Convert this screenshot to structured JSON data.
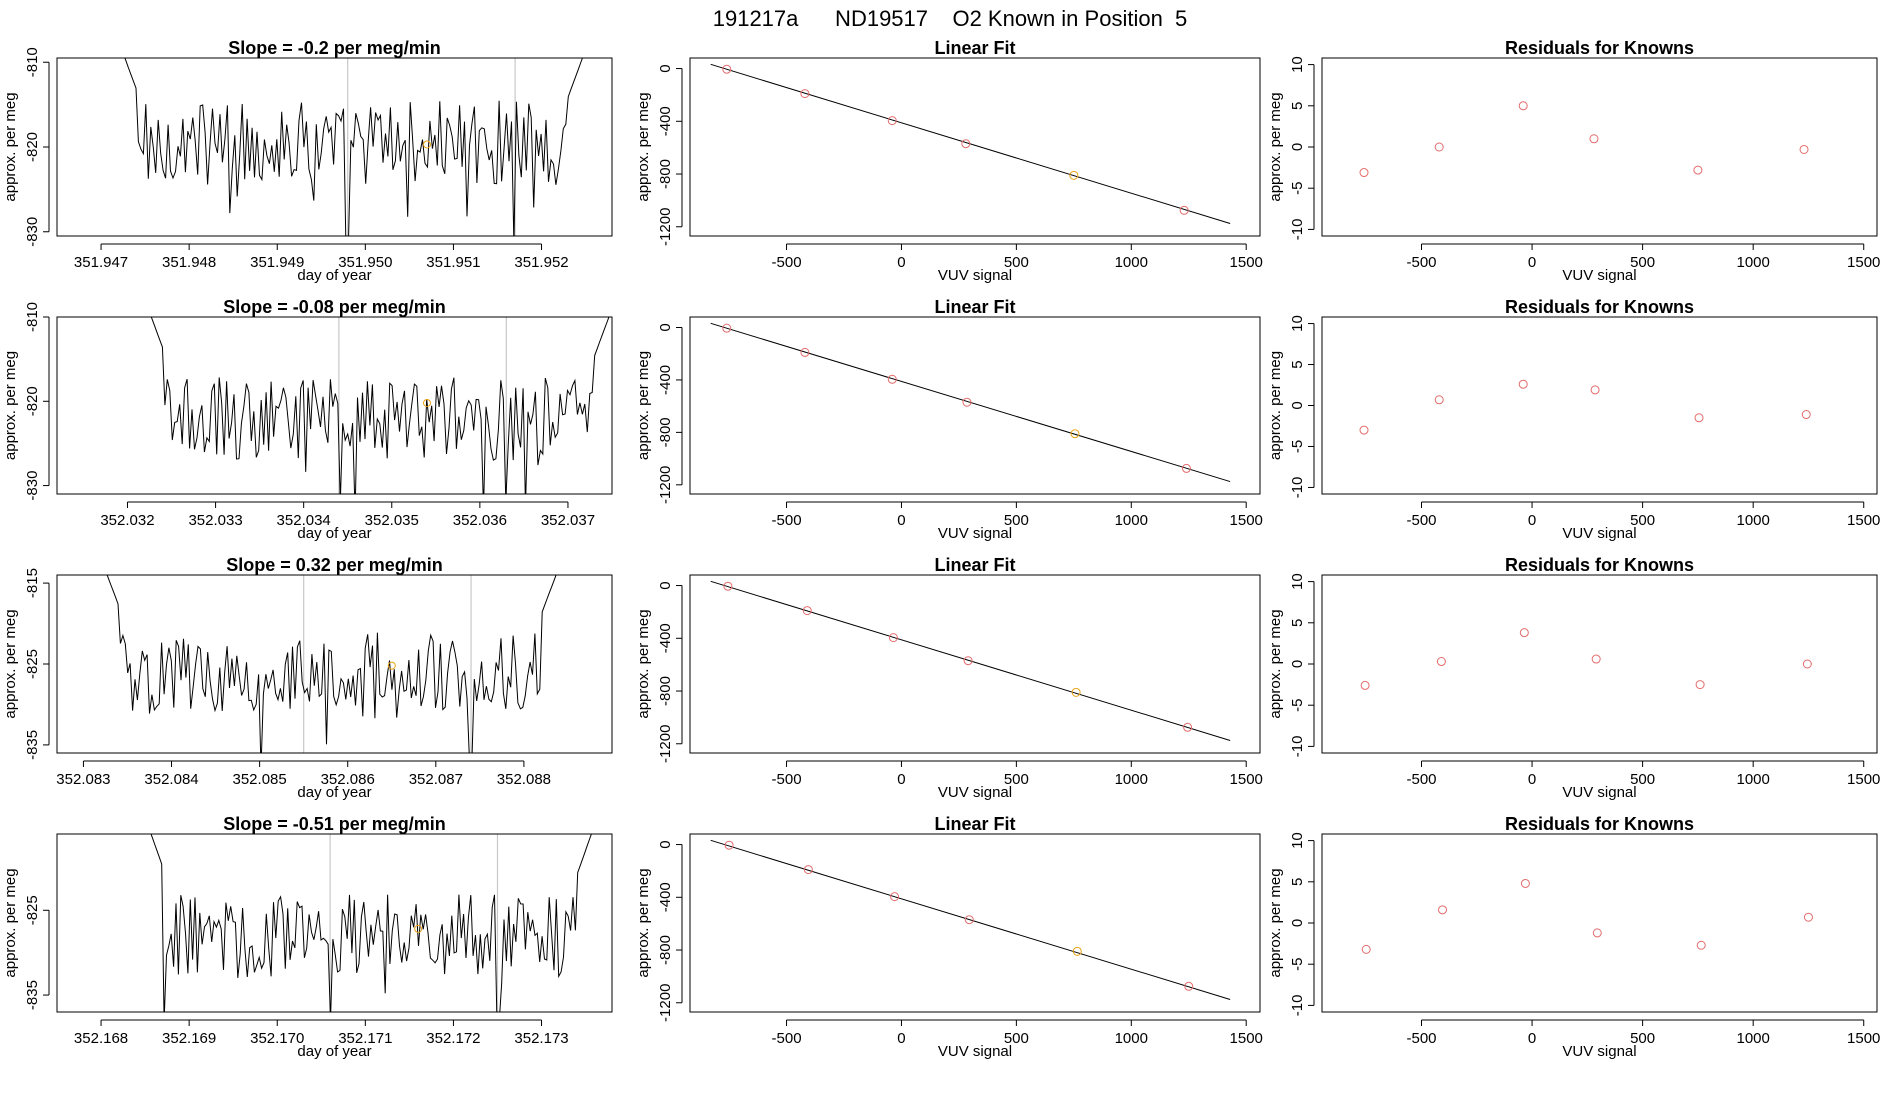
{
  "figure": {
    "title": "191217a      ND19517    O2 Known in Position  5"
  },
  "colors": {
    "trace": "#000000",
    "known_marker": "#e36b6b",
    "highlight_marker": "#e8a317",
    "vline": "#c8c8c8"
  },
  "chart_data": [
    {
      "type": "line",
      "panel": "timeseries-row1",
      "title": "Slope =  -0.2  per meg/min",
      "xlabel": "day of year",
      "ylabel": "approx. per meg",
      "xlim": [
        351.9465,
        351.9528
      ],
      "ylim": [
        -830.5,
        -809.5
      ],
      "xticks": [
        351.947,
        351.948,
        351.949,
        351.95,
        351.951,
        351.952
      ],
      "xtick_labels": [
        "351.947",
        "351.948",
        "351.949",
        "351.950",
        "351.951",
        "351.952"
      ],
      "yticks": [
        -830,
        -820,
        -810
      ],
      "ytick_labels": [
        "-830",
        "-820",
        "-810"
      ],
      "vlines": [
        351.9498,
        351.9517
      ],
      "x_start": 351.9472,
      "x_end": 351.9525,
      "baseline": -819.5,
      "highlight_point": {
        "x": 351.9507,
        "y": -819.7
      }
    },
    {
      "type": "line",
      "panel": "timeseries-row2",
      "title": "Slope =  -0.08  per meg/min",
      "xlabel": "day of year",
      "ylabel": "approx. per meg",
      "xlim": [
        352.0312,
        352.0375
      ],
      "ylim": [
        -831,
        -810
      ],
      "xticks": [
        352.032,
        352.033,
        352.034,
        352.035,
        352.036,
        352.037
      ],
      "xtick_labels": [
        "352.032",
        "352.033",
        "352.034",
        "352.035",
        "352.036",
        "352.037"
      ],
      "yticks": [
        -830,
        -820,
        -810
      ],
      "ytick_labels": [
        "-830",
        "-820",
        "-810"
      ],
      "vlines": [
        352.0344,
        352.0363
      ],
      "x_start": 352.0322,
      "x_end": 352.0375,
      "baseline": -822,
      "highlight_point": {
        "x": 352.0354,
        "y": -820.2
      }
    },
    {
      "type": "line",
      "panel": "timeseries-row3",
      "title": "Slope =  0.32  per meg/min",
      "xlabel": "day of year",
      "ylabel": "approx. per meg",
      "xlim": [
        352.0827,
        352.089
      ],
      "ylim": [
        -836,
        -814
      ],
      "xticks": [
        352.083,
        352.084,
        352.085,
        352.086,
        352.087,
        352.088
      ],
      "xtick_labels": [
        "352.083",
        "352.084",
        "352.085",
        "352.086",
        "352.087",
        "352.088"
      ],
      "yticks": [
        -835,
        -825,
        -815
      ],
      "ytick_labels": [
        "-835",
        "-825",
        "-815"
      ],
      "vlines": [
        352.0855,
        352.0874
      ],
      "x_start": 352.0832,
      "x_end": 352.0884,
      "baseline": -826,
      "highlight_point": {
        "x": 352.0865,
        "y": -825.2
      }
    },
    {
      "type": "line",
      "panel": "timeseries-row4",
      "title": "Slope =  -0.51  per meg/min",
      "xlabel": "day of year",
      "ylabel": "approx. per meg",
      "xlim": [
        352.1675,
        352.1738
      ],
      "ylim": [
        -837,
        -816
      ],
      "xticks": [
        352.168,
        352.169,
        352.17,
        352.171,
        352.172,
        352.173
      ],
      "xtick_labels": [
        "352.168",
        "352.169",
        "352.170",
        "352.171",
        "352.172",
        "352.173"
      ],
      "yticks": [
        -835,
        -825
      ],
      "ytick_labels": [
        "-835",
        "-825"
      ],
      "vlines": [
        352.1706,
        352.1725
      ],
      "x_start": 352.1685,
      "x_end": 352.1736,
      "baseline": -828,
      "highlight_point": {
        "x": 352.1716,
        "y": -827.2
      }
    },
    {
      "type": "scatter",
      "panel": "fit-row1",
      "title": "Linear Fit",
      "xlabel": "VUV signal",
      "ylabel": "approx. per meg",
      "xlim": [
        -920,
        1560
      ],
      "ylim": [
        -1270,
        80
      ],
      "xticks": [
        -500,
        0,
        500,
        1000,
        1500
      ],
      "xtick_labels": [
        "-500",
        "0",
        "500",
        "1000",
        "1500"
      ],
      "yticks": [
        0,
        -400,
        -800,
        -1200
      ],
      "ytick_labels": [
        "0",
        "-400",
        "-800",
        "-1200"
      ],
      "line": {
        "x": [
          -830,
          1430
        ],
        "y": [
          32,
          -1175
        ]
      },
      "points": [
        {
          "x": -760,
          "y": -5
        },
        {
          "x": -420,
          "y": -190
        },
        {
          "x": -40,
          "y": -395
        },
        {
          "x": 280,
          "y": -570
        },
        {
          "x": 750,
          "y": -810,
          "highlight": true
        },
        {
          "x": 1230,
          "y": -1075
        }
      ]
    },
    {
      "type": "scatter",
      "panel": "fit-row2",
      "title": "Linear Fit",
      "xlabel": "VUV signal",
      "ylabel": "approx. per meg",
      "xlim": [
        -920,
        1560
      ],
      "ylim": [
        -1270,
        80
      ],
      "xticks": [
        -500,
        0,
        500,
        1000,
        1500
      ],
      "xtick_labels": [
        "-500",
        "0",
        "500",
        "1000",
        "1500"
      ],
      "yticks": [
        0,
        -400,
        -800,
        -1200
      ],
      "ytick_labels": [
        "0",
        "-400",
        "-800",
        "-1200"
      ],
      "line": {
        "x": [
          -830,
          1430
        ],
        "y": [
          32,
          -1175
        ]
      },
      "points": [
        {
          "x": -760,
          "y": -5
        },
        {
          "x": -420,
          "y": -190
        },
        {
          "x": -40,
          "y": -395
        },
        {
          "x": 285,
          "y": -570
        },
        {
          "x": 755,
          "y": -810,
          "highlight": true
        },
        {
          "x": 1240,
          "y": -1075
        }
      ]
    },
    {
      "type": "scatter",
      "panel": "fit-row3",
      "title": "Linear Fit",
      "xlabel": "VUV signal",
      "ylabel": "approx. per meg",
      "xlim": [
        -920,
        1560
      ],
      "ylim": [
        -1270,
        80
      ],
      "xticks": [
        -500,
        0,
        500,
        1000,
        1500
      ],
      "xtick_labels": [
        "-500",
        "0",
        "500",
        "1000",
        "1500"
      ],
      "yticks": [
        0,
        -400,
        -800,
        -1200
      ],
      "ytick_labels": [
        "0",
        "-400",
        "-800",
        "-1200"
      ],
      "line": {
        "x": [
          -830,
          1430
        ],
        "y": [
          32,
          -1175
        ]
      },
      "points": [
        {
          "x": -755,
          "y": -5
        },
        {
          "x": -410,
          "y": -190
        },
        {
          "x": -35,
          "y": -395
        },
        {
          "x": 290,
          "y": -570
        },
        {
          "x": 760,
          "y": -810,
          "highlight": true
        },
        {
          "x": 1245,
          "y": -1075
        }
      ]
    },
    {
      "type": "scatter",
      "panel": "fit-row4",
      "title": "Linear Fit",
      "xlabel": "VUV signal",
      "ylabel": "approx. per meg",
      "xlim": [
        -920,
        1560
      ],
      "ylim": [
        -1270,
        80
      ],
      "xticks": [
        -500,
        0,
        500,
        1000,
        1500
      ],
      "xtick_labels": [
        "-500",
        "0",
        "500",
        "1000",
        "1500"
      ],
      "yticks": [
        0,
        -400,
        -800,
        -1200
      ],
      "ytick_labels": [
        "0",
        "-400",
        "-800",
        "-1200"
      ],
      "line": {
        "x": [
          -830,
          1430
        ],
        "y": [
          32,
          -1175
        ]
      },
      "points": [
        {
          "x": -750,
          "y": -5
        },
        {
          "x": -405,
          "y": -190
        },
        {
          "x": -30,
          "y": -395
        },
        {
          "x": 295,
          "y": -570
        },
        {
          "x": 765,
          "y": -810,
          "highlight": true
        },
        {
          "x": 1250,
          "y": -1075
        }
      ]
    },
    {
      "type": "scatter",
      "panel": "residuals-row1",
      "title": "Residuals for Knowns",
      "xlabel": "VUV signal",
      "ylabel": "approx. per meg",
      "xlim": [
        -950,
        1560
      ],
      "ylim": [
        -10.8,
        10.8
      ],
      "xticks": [
        -500,
        0,
        500,
        1000,
        1500
      ],
      "xtick_labels": [
        "-500",
        "0",
        "500",
        "1000",
        "1500"
      ],
      "yticks": [
        -10,
        -5,
        0,
        5,
        10
      ],
      "ytick_labels": [
        "-10",
        "-5",
        "0",
        "5",
        "10"
      ],
      "points": [
        {
          "x": -760,
          "y": -3.1
        },
        {
          "x": -420,
          "y": 0.0
        },
        {
          "x": -40,
          "y": 5.0
        },
        {
          "x": 280,
          "y": 1.0
        },
        {
          "x": 750,
          "y": -2.8
        },
        {
          "x": 1230,
          "y": -0.3
        }
      ]
    },
    {
      "type": "scatter",
      "panel": "residuals-row2",
      "title": "Residuals for Knowns",
      "xlabel": "VUV signal",
      "ylabel": "approx. per meg",
      "xlim": [
        -950,
        1560
      ],
      "ylim": [
        -10.8,
        10.8
      ],
      "xticks": [
        -500,
        0,
        500,
        1000,
        1500
      ],
      "xtick_labels": [
        "-500",
        "0",
        "500",
        "1000",
        "1500"
      ],
      "yticks": [
        -10,
        -5,
        0,
        5,
        10
      ],
      "ytick_labels": [
        "-10",
        "-5",
        "0",
        "5",
        "10"
      ],
      "points": [
        {
          "x": -760,
          "y": -3.0
        },
        {
          "x": -420,
          "y": 0.7
        },
        {
          "x": -40,
          "y": 2.6
        },
        {
          "x": 285,
          "y": 1.9
        },
        {
          "x": 755,
          "y": -1.5
        },
        {
          "x": 1240,
          "y": -1.1
        }
      ]
    },
    {
      "type": "scatter",
      "panel": "residuals-row3",
      "title": "Residuals for Knowns",
      "xlabel": "VUV signal",
      "ylabel": "approx. per meg",
      "xlim": [
        -950,
        1560
      ],
      "ylim": [
        -10.8,
        10.8
      ],
      "xticks": [
        -500,
        0,
        500,
        1000,
        1500
      ],
      "xtick_labels": [
        "-500",
        "0",
        "500",
        "1000",
        "1500"
      ],
      "yticks": [
        -10,
        -5,
        0,
        5,
        10
      ],
      "ytick_labels": [
        "-10",
        "-5",
        "0",
        "5",
        "10"
      ],
      "points": [
        {
          "x": -755,
          "y": -2.6
        },
        {
          "x": -410,
          "y": 0.3
        },
        {
          "x": -35,
          "y": 3.8
        },
        {
          "x": 290,
          "y": 0.6
        },
        {
          "x": 760,
          "y": -2.5
        },
        {
          "x": 1245,
          "y": 0.0
        }
      ]
    },
    {
      "type": "scatter",
      "panel": "residuals-row4",
      "title": "Residuals for Knowns",
      "xlabel": "VUV signal",
      "ylabel": "approx. per meg",
      "xlim": [
        -950,
        1560
      ],
      "ylim": [
        -10.8,
        10.8
      ],
      "xticks": [
        -500,
        0,
        500,
        1000,
        1500
      ],
      "xtick_labels": [
        "-500",
        "0",
        "500",
        "1000",
        "1500"
      ],
      "yticks": [
        -10,
        -5,
        0,
        5,
        10
      ],
      "ytick_labels": [
        "-10",
        "-5",
        "0",
        "5",
        "10"
      ],
      "points": [
        {
          "x": -750,
          "y": -3.2
        },
        {
          "x": -405,
          "y": 1.6
        },
        {
          "x": -30,
          "y": 4.8
        },
        {
          "x": 295,
          "y": -1.2
        },
        {
          "x": 765,
          "y": -2.7
        },
        {
          "x": 1250,
          "y": 0.7
        }
      ]
    }
  ]
}
